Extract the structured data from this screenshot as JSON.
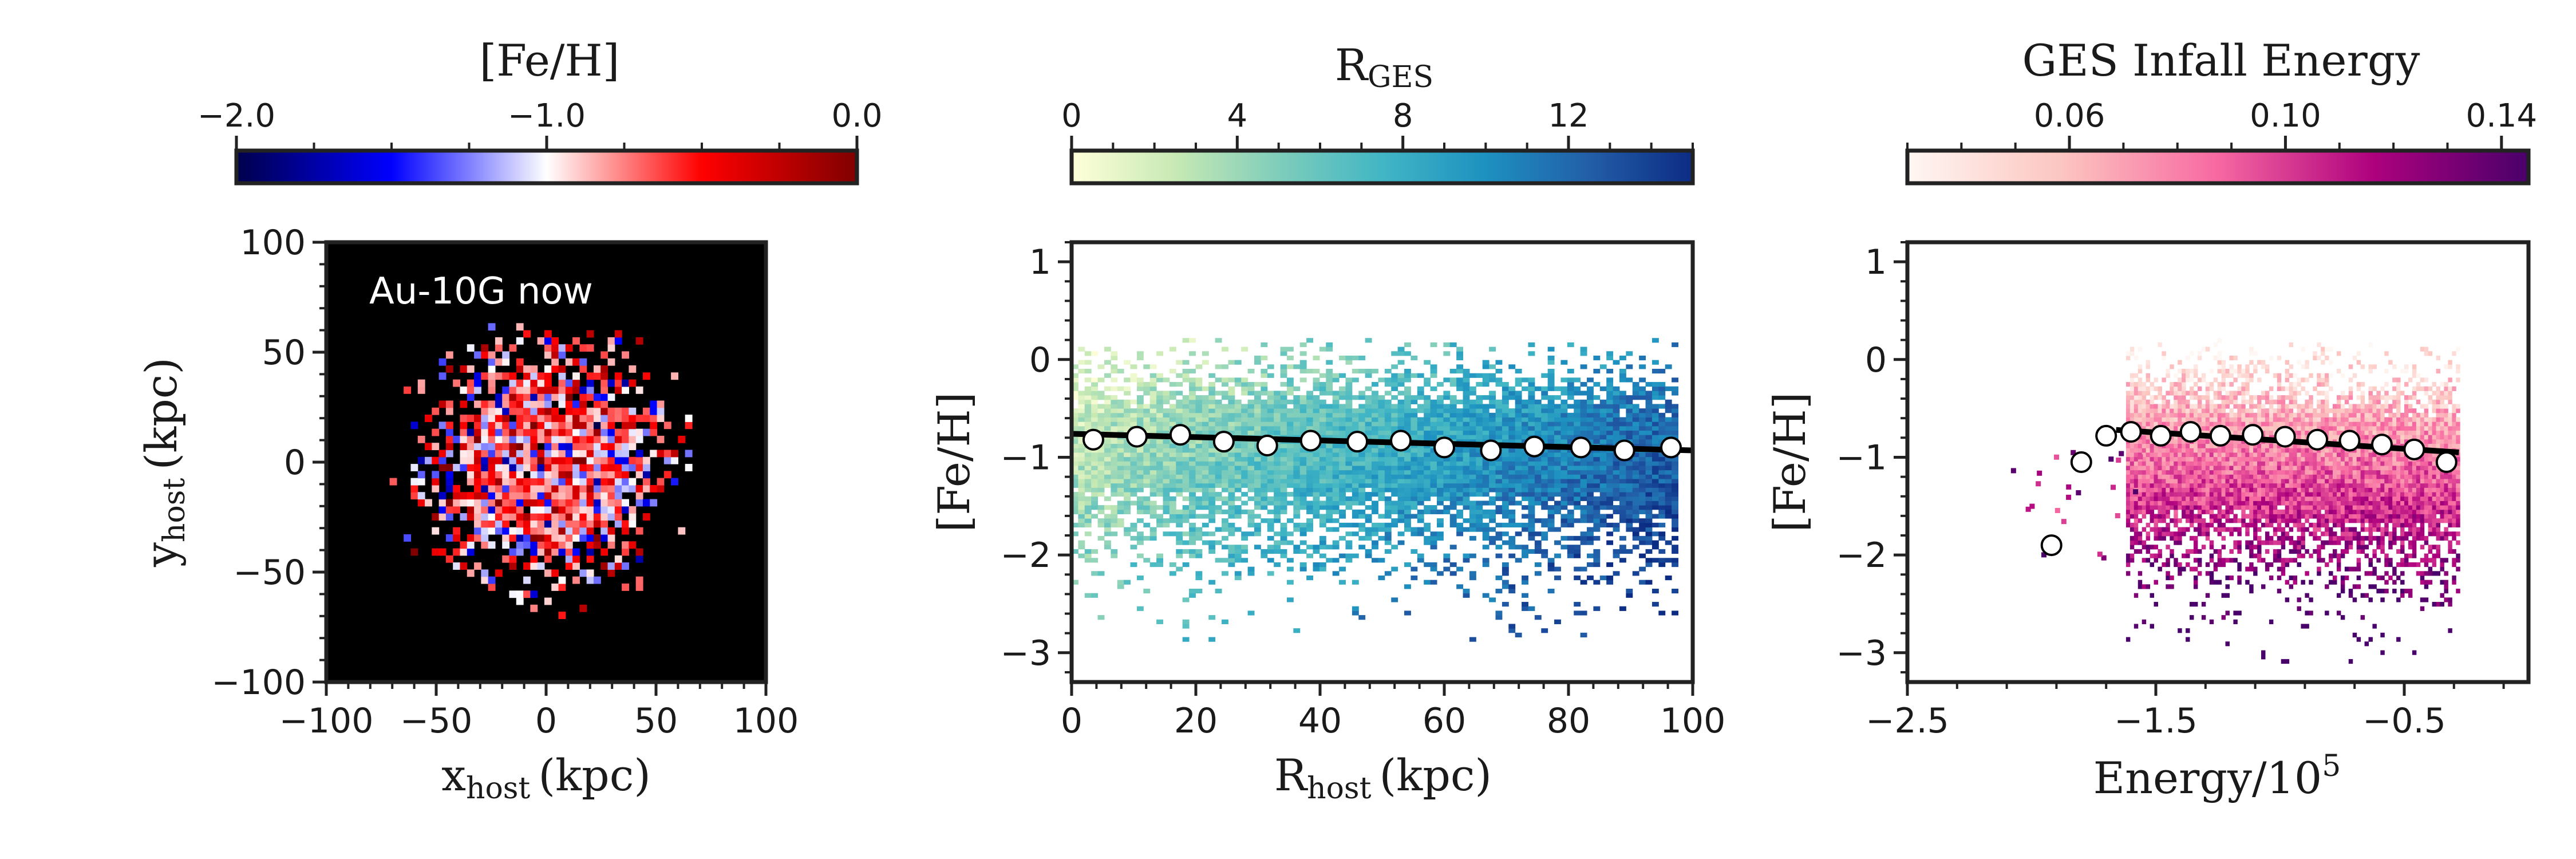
{
  "chart_data": [
    {
      "type": "heatmap",
      "panel": "xy-map",
      "annotation": "Au-10G now",
      "xlabel": {
        "main": "x",
        "sub": "host",
        "unit": "(kpc)"
      },
      "ylabel": {
        "main": "y",
        "sub": "host",
        "unit": "(kpc)"
      },
      "xlim": [
        -100,
        100
      ],
      "ylim": [
        -100,
        100
      ],
      "xticks": [
        -100,
        -50,
        0,
        50,
        100
      ],
      "yticks": [
        -100,
        -50,
        0,
        50,
        100
      ],
      "xtick_labels": [
        "−100",
        "−50",
        "0",
        "50",
        "100"
      ],
      "ytick_labels": [
        "−100",
        "−50",
        "0",
        "50",
        "100"
      ],
      "background": "#000000",
      "colorbar": {
        "title": "[Fe/H]",
        "range": [
          -2.0,
          0.0
        ],
        "ticks": [
          -2.0,
          -1.0,
          0.0
        ],
        "tick_labels": [
          "−2.0",
          "−1.0",
          "0.0"
        ],
        "colormap": "seismic",
        "colors": [
          "#00004c",
          "#0000ff",
          "#ffffff",
          "#ff0000",
          "#800000"
        ]
      },
      "distribution": {
        "center": [
          0,
          0
        ],
        "core_radius": 38,
        "halo_radius": 75,
        "typical_feh": -0.75
      }
    },
    {
      "type": "heatmap",
      "panel": "feh-vs-radius",
      "xlabel": {
        "main": "R",
        "sub": "host",
        "unit": "(kpc)"
      },
      "ylabel": "[Fe/H]",
      "xlim": [
        0,
        100
      ],
      "ylim": [
        -3.3,
        1.2
      ],
      "xticks": [
        0,
        20,
        40,
        60,
        80,
        100
      ],
      "yticks": [
        -3,
        -2,
        -1,
        0,
        1
      ],
      "xtick_labels": [
        "0",
        "20",
        "40",
        "60",
        "80",
        "100"
      ],
      "ytick_labels": [
        "−3",
        "−2",
        "−1",
        "0",
        "1"
      ],
      "colorbar": {
        "title": {
          "main": "R",
          "sub": "GES"
        },
        "range": [
          0,
          15
        ],
        "ticks": [
          0,
          4,
          8,
          12
        ],
        "tick_labels": [
          "0",
          "4",
          "8",
          "12"
        ],
        "colormap": "YlGnBu",
        "colors": [
          "#ffffd9",
          "#c7e9b4",
          "#7fcdbb",
          "#41b6c4",
          "#1d91c0",
          "#225ea8",
          "#0c2c84"
        ]
      },
      "trend_line": {
        "x": [
          0,
          100
        ],
        "y": [
          -0.76,
          -0.93
        ]
      },
      "median_points": {
        "x": [
          3.5,
          10.5,
          17.5,
          24.5,
          31.5,
          38.5,
          46,
          53,
          60,
          67.5,
          74.5,
          82,
          89,
          96.5
        ],
        "y": [
          -0.82,
          -0.79,
          -0.77,
          -0.84,
          -0.88,
          -0.83,
          -0.84,
          -0.83,
          -0.9,
          -0.93,
          -0.89,
          -0.9,
          -0.93,
          -0.9
        ]
      }
    },
    {
      "type": "heatmap",
      "panel": "feh-vs-energy",
      "xlabel": {
        "main": "Energy/10",
        "sup": "5"
      },
      "ylabel": "[Fe/H]",
      "xlim": [
        -2.5,
        0.0
      ],
      "ylim": [
        -3.3,
        1.2
      ],
      "xticks": [
        -2.5,
        -1.5,
        -0.5
      ],
      "yticks": [
        -3,
        -2,
        -1,
        0,
        1
      ],
      "xtick_labels": [
        "−2.5",
        "−1.5",
        "−0.5"
      ],
      "ytick_labels": [
        "−3",
        "−2",
        "−1",
        "0",
        "1"
      ],
      "colorbar": {
        "title": "GES Infall Energy",
        "range": [
          0.03,
          0.145
        ],
        "ticks": [
          0.06,
          0.1,
          0.14
        ],
        "tick_labels": [
          "0.06",
          "0.10",
          "0.14"
        ],
        "colormap": "RdPu",
        "colors": [
          "#fff7f3",
          "#fcc5c0",
          "#f768a1",
          "#ae017e",
          "#49006a"
        ]
      },
      "trend_line": {
        "x": [
          -1.66,
          -0.28
        ],
        "y": [
          -0.72,
          -0.95
        ]
      },
      "median_points": {
        "x": [
          -1.92,
          -1.8,
          -1.7,
          -1.6,
          -1.48,
          -1.36,
          -1.24,
          -1.11,
          -0.98,
          -0.85,
          -0.72,
          -0.59,
          -0.46,
          -0.33
        ],
        "y": [
          -1.9,
          -1.05,
          -0.78,
          -0.74,
          -0.78,
          -0.74,
          -0.78,
          -0.77,
          -0.79,
          -0.82,
          -0.83,
          -0.87,
          -0.92,
          -1.05
        ]
      }
    }
  ]
}
